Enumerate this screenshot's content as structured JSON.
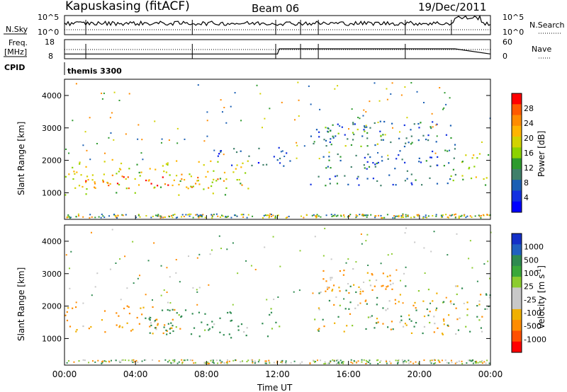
{
  "header": {
    "title": "Kapuskasing (fitACF)",
    "beam": "Beam 06",
    "date": "19/Dec/2011"
  },
  "summary": {
    "nsky_label": "N.Sky",
    "nsky_ticks": [
      "10^5",
      "10^0"
    ],
    "nsearch_label": "N.Search",
    "nsearch_ticks": [
      "10^5",
      "10^0"
    ],
    "freq_label_1": "Freq.",
    "freq_label_2": "[MHz]",
    "freq_ticks": [
      "18",
      "8"
    ],
    "nave_label": "Nave",
    "nave_ticks": [
      "60",
      "0"
    ],
    "cpid_label": "CPID",
    "cpid_value": "themis 3300"
  },
  "power_panel": {
    "ylabel": "Slant Range [km]",
    "yticks": [
      "4000",
      "3000",
      "2000",
      "1000"
    ],
    "colorbar_label": "Power [dB]",
    "colorbar_ticks": [
      "28",
      "24",
      "20",
      "16",
      "12",
      "8",
      "4"
    ],
    "colors": [
      "#ff0000",
      "#ff5a00",
      "#ff8c00",
      "#ffb400",
      "#d2d200",
      "#8cd200",
      "#2e9a2e",
      "#40806a",
      "#1a5fb4",
      "#1230e0",
      "#0000ff"
    ]
  },
  "velocity_panel": {
    "ylabel": "Slant Range [km]",
    "yticks": [
      "4000",
      "3000",
      "2000",
      "1000"
    ],
    "colorbar_label": "Velocity [m s",
    "colorbar_unit_sup": "-1",
    "colorbar_unit_close": "]",
    "colorbar_ticks": [
      "1000",
      "500",
      "100",
      "25",
      "-25",
      "-100",
      "-500",
      "-1000"
    ],
    "colors": [
      "#1430c8",
      "#2060c0",
      "#2e8a50",
      "#3aa83a",
      "#8ccc30",
      "#c8c8c8",
      "#c8c8c8",
      "#f0b000",
      "#ff8c00",
      "#ff5000",
      "#ff0000"
    ]
  },
  "xaxis": {
    "label": "Time UT",
    "ticks": [
      "00:00",
      "04:00",
      "08:00",
      "12:00",
      "16:00",
      "20:00",
      "00:00"
    ]
  },
  "chart_data": {
    "type": "heatmap",
    "title": "Kapuskasing (fitACF)",
    "xlabel": "Time UT",
    "ylabel": "Slant Range [km]",
    "xlim_hours": [
      0,
      24
    ],
    "ylim_km": [
      180,
      4500
    ],
    "freq_mhz": [
      10.5,
      10.5,
      10.5,
      13.2,
      13.2,
      13.2,
      10.5
    ],
    "freq_step_hours": [
      0,
      12.0,
      12.0,
      12.1,
      21.9,
      22.0,
      24
    ],
    "power_regions": [
      {
        "t_start": 0.0,
        "t_end": 10.6,
        "r_low": 900,
        "r_high": 2000,
        "power_db": 18
      },
      {
        "t_start": 1.0,
        "t_end": 9.0,
        "r_low": 1100,
        "r_high": 1500,
        "power_db": 26
      },
      {
        "t_start": 8.6,
        "t_end": 12.8,
        "r_low": 1800,
        "r_high": 2400,
        "power_db": 6
      },
      {
        "t_start": 13.8,
        "t_end": 22.0,
        "r_low": 1200,
        "r_high": 3200,
        "power_db": 7
      },
      {
        "t_start": 14.5,
        "t_end": 18.0,
        "r_low": 2400,
        "r_high": 3000,
        "power_db": 14
      },
      {
        "t_start": 21.7,
        "t_end": 24.0,
        "r_low": 1200,
        "r_high": 2200,
        "power_db": 16
      }
    ],
    "velocity_regions": [
      {
        "t_start": 0.0,
        "t_end": 6.5,
        "r_low": 1100,
        "r_high": 2000,
        "velocity": -150
      },
      {
        "t_start": 4.5,
        "t_end": 12.5,
        "r_low": 1000,
        "r_high": 1900,
        "velocity": 150
      },
      {
        "t_start": 14.2,
        "t_end": 18.5,
        "r_low": 2400,
        "r_high": 3200,
        "velocity": -150
      },
      {
        "t_start": 13.8,
        "t_end": 24.0,
        "r_low": 1100,
        "r_high": 2600,
        "velocity": 0
      }
    ]
  }
}
